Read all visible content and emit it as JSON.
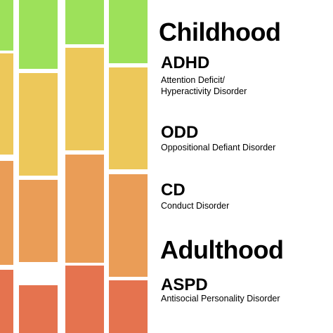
{
  "colors": {
    "background": "#ffffff",
    "green": "#9de15a",
    "yellow": "#edc85a",
    "orange": "#ea9d57",
    "red": "#e5734f",
    "text": "#000000"
  },
  "stages": {
    "childhood": {
      "heading": "Childhood",
      "disorders": [
        {
          "abbr": "ADHD",
          "name_lines": [
            "Attention Deficit/",
            "Hyperactivity Disorder"
          ]
        },
        {
          "abbr": "ODD",
          "name_lines": [
            "Oppositional Defiant Disorder"
          ]
        },
        {
          "abbr": "CD",
          "name_lines": [
            "Conduct Disorder"
          ]
        }
      ]
    },
    "adulthood": {
      "heading": "Adulthood",
      "disorders": [
        {
          "abbr": "ASPD",
          "name_lines": [
            "Antisocial Personality Disorder"
          ]
        }
      ]
    }
  }
}
